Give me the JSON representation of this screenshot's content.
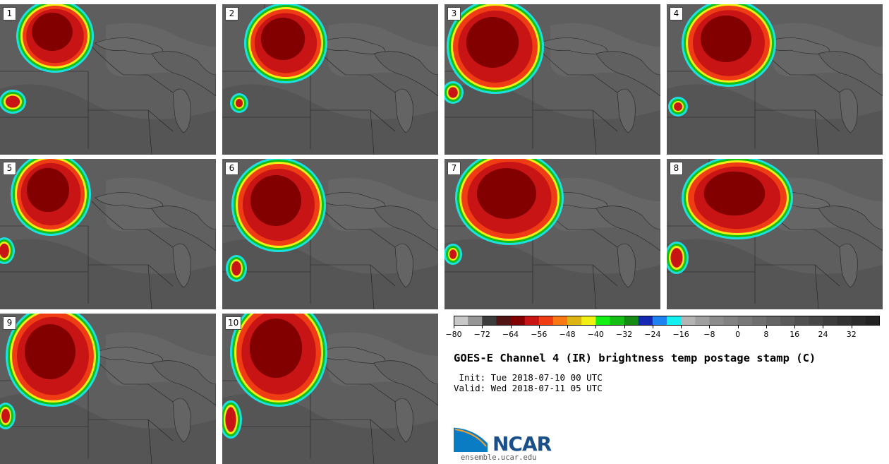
{
  "panels": [
    {
      "label": "1"
    },
    {
      "label": "2"
    },
    {
      "label": "3"
    },
    {
      "label": "4"
    },
    {
      "label": "5"
    },
    {
      "label": "6"
    },
    {
      "label": "7"
    },
    {
      "label": "8"
    },
    {
      "label": "9"
    },
    {
      "label": "10"
    }
  ],
  "colorbar": {
    "tick_labels": [
      "−80",
      "−72",
      "−64",
      "−56",
      "−48",
      "−40",
      "−32",
      "−24",
      "−16",
      "−8",
      "0",
      "8",
      "16",
      "24",
      "32"
    ],
    "colors": [
      "#c8c8c8",
      "#969696",
      "#3c3c3c",
      "#501414",
      "#820000",
      "#c81414",
      "#f03c14",
      "#fa7814",
      "#dcb414",
      "#f0f014",
      "#14f014",
      "#14be14",
      "#148c14",
      "#1428b4",
      "#1e82f0",
      "#14f0f0",
      "#b4b4b4",
      "#a0a0a0",
      "#8c8c8c",
      "#828282",
      "#787878",
      "#6e6e6e",
      "#646464",
      "#5a5a5a",
      "#505050",
      "#464646",
      "#3c3c3c",
      "#323232",
      "#2a2a2a",
      "#222222"
    ]
  },
  "title": "GOES-E Channel 4 (IR) brightness temp postage stamp (C)",
  "init_line": " Init: Tue 2018-07-10 00 UTC",
  "valid_line": "Valid: Wed 2018-07-11 05 UTC",
  "logo": {
    "text": "NCAR",
    "url": "ensemble.ucar.edu"
  }
}
